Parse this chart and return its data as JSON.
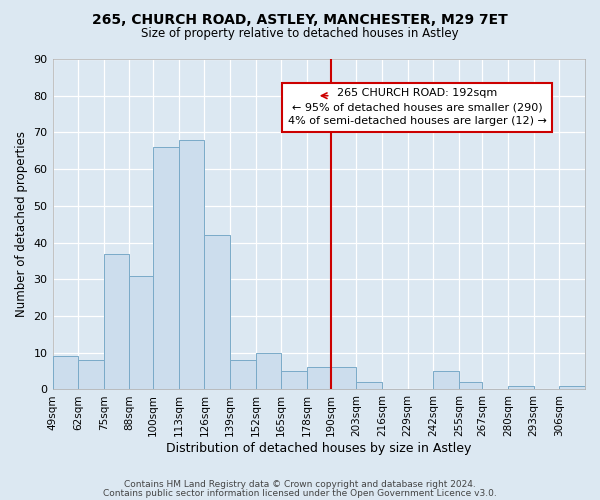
{
  "title": "265, CHURCH ROAD, ASTLEY, MANCHESTER, M29 7ET",
  "subtitle": "Size of property relative to detached houses in Astley",
  "xlabel": "Distribution of detached houses by size in Astley",
  "ylabel": "Number of detached properties",
  "bin_labels": [
    "49sqm",
    "62sqm",
    "75sqm",
    "88sqm",
    "100sqm",
    "113sqm",
    "126sqm",
    "139sqm",
    "152sqm",
    "165sqm",
    "178sqm",
    "190sqm",
    "203sqm",
    "216sqm",
    "229sqm",
    "242sqm",
    "255sqm",
    "267sqm",
    "280sqm",
    "293sqm",
    "306sqm"
  ],
  "bar_values": [
    9,
    8,
    37,
    31,
    66,
    68,
    42,
    8,
    10,
    5,
    6,
    6,
    2,
    0,
    0,
    5,
    2,
    0,
    1,
    0,
    1
  ],
  "bar_color": "#ccdded",
  "bar_edge_color": "#7aaac8",
  "vline_color": "#cc0000",
  "annotation_box_edge": "#cc0000",
  "ylim": [
    0,
    90
  ],
  "yticks": [
    0,
    10,
    20,
    30,
    40,
    50,
    60,
    70,
    80,
    90
  ],
  "footer1": "Contains HM Land Registry data © Crown copyright and database right 2024.",
  "footer2": "Contains public sector information licensed under the Open Government Licence v3.0.",
  "background_color": "#dce8f2",
  "grid_color": "#ffffff",
  "annotation_title": "265 CHURCH ROAD: 192sqm",
  "annotation_line1": "← 95% of detached houses are smaller (290)",
  "annotation_line2": "4% of semi-detached houses are larger (12) →"
}
